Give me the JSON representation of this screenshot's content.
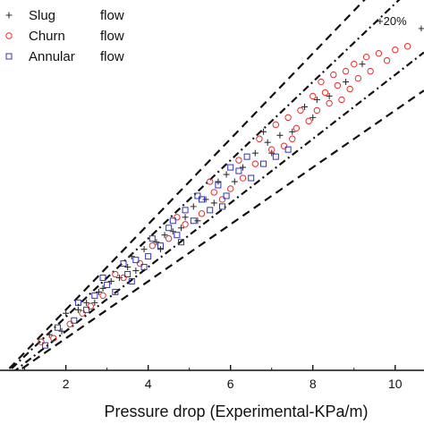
{
  "chart_data": {
    "type": "scatter",
    "title": "",
    "xlabel": "Pressure drop (Experimental-KPa/m)",
    "ylabel": "",
    "xlim": [
      0.4,
      10.7
    ],
    "ylim": [
      0.7,
      11.1
    ],
    "xticks": [
      2,
      4,
      6,
      8,
      10
    ],
    "xtick_labels": [
      "2",
      "4",
      "6",
      "8",
      "10"
    ],
    "grid": false,
    "legend": {
      "position": "top-left",
      "entries": [
        {
          "word1": "Slug",
          "word2": "flow",
          "marker": "plus",
          "color": "#333333"
        },
        {
          "word1": "Churn",
          "word2": "flow",
          "marker": "circle",
          "color": "#e03030"
        },
        {
          "word1": "Annular",
          "word2": "flow",
          "marker": "square",
          "color": "#3030c8"
        }
      ]
    },
    "annotations": [
      {
        "text": "+20%",
        "x": 9.55,
        "y": 10.4
      },
      {
        "text": "+",
        "x": 10.55,
        "y": 10.2
      }
    ],
    "reference_lines": [
      {
        "slope": 1.2,
        "style": "dashed"
      },
      {
        "slope": 1.1,
        "style": "dashdot"
      },
      {
        "slope": 0.9,
        "style": "dashdot"
      },
      {
        "slope": 0.8,
        "style": "dashed"
      }
    ],
    "series": [
      {
        "name": "Slug flow",
        "marker": "plus",
        "color": "#333333",
        "points": [
          [
            1.6,
            1.7
          ],
          [
            1.9,
            1.8
          ],
          [
            2.0,
            2.3
          ],
          [
            2.3,
            2.4
          ],
          [
            2.5,
            2.6
          ],
          [
            2.7,
            2.6
          ],
          [
            2.9,
            3.0
          ],
          [
            3.1,
            3.2
          ],
          [
            3.3,
            3.3
          ],
          [
            3.5,
            3.6
          ],
          [
            3.7,
            3.5
          ],
          [
            3.9,
            4.1
          ],
          [
            4.2,
            4.3
          ],
          [
            4.4,
            4.5
          ],
          [
            4.6,
            4.6
          ],
          [
            4.9,
            5.0
          ],
          [
            5.1,
            5.3
          ],
          [
            5.4,
            5.5
          ],
          [
            5.6,
            5.4
          ],
          [
            5.9,
            6.2
          ],
          [
            6.1,
            6.0
          ],
          [
            6.3,
            6.4
          ],
          [
            6.6,
            6.8
          ],
          [
            6.9,
            7.1
          ],
          [
            7.2,
            7.3
          ],
          [
            7.5,
            7.4
          ],
          [
            7.8,
            8.1
          ],
          [
            8.1,
            8.3
          ],
          [
            8.4,
            8.4
          ],
          [
            8.8,
            8.8
          ],
          [
            9.2,
            9.3
          ],
          [
            5.2,
            4.9
          ],
          [
            4.8,
            4.7
          ],
          [
            3.6,
            3.9
          ],
          [
            2.8,
            2.9
          ],
          [
            6.8,
            7.4
          ],
          [
            5.7,
            6.0
          ],
          [
            7.0,
            6.8
          ],
          [
            4.3,
            4.1
          ],
          [
            8.0,
            7.8
          ]
        ]
      },
      {
        "name": "Churn flow",
        "marker": "circle",
        "color": "#e03030",
        "points": [
          [
            1.4,
            1.5
          ],
          [
            1.7,
            1.6
          ],
          [
            2.1,
            2.0
          ],
          [
            2.4,
            2.3
          ],
          [
            2.9,
            2.8
          ],
          [
            3.4,
            3.3
          ],
          [
            3.8,
            3.7
          ],
          [
            4.1,
            4.2
          ],
          [
            4.5,
            4.4
          ],
          [
            4.9,
            4.8
          ],
          [
            5.3,
            5.1
          ],
          [
            5.6,
            5.7
          ],
          [
            5.8,
            5.5
          ],
          [
            6.0,
            5.8
          ],
          [
            6.3,
            6.1
          ],
          [
            6.6,
            6.5
          ],
          [
            6.7,
            7.2
          ],
          [
            7.0,
            6.9
          ],
          [
            7.1,
            7.6
          ],
          [
            7.3,
            7.0
          ],
          [
            7.4,
            7.8
          ],
          [
            7.6,
            7.5
          ],
          [
            7.7,
            8.0
          ],
          [
            7.9,
            7.7
          ],
          [
            8.0,
            8.4
          ],
          [
            8.1,
            8.0
          ],
          [
            8.2,
            8.8
          ],
          [
            8.3,
            8.5
          ],
          [
            8.4,
            8.2
          ],
          [
            8.5,
            9.0
          ],
          [
            8.6,
            8.7
          ],
          [
            8.7,
            8.3
          ],
          [
            8.8,
            9.1
          ],
          [
            8.9,
            8.6
          ],
          [
            9.0,
            9.3
          ],
          [
            9.1,
            8.9
          ],
          [
            9.3,
            9.5
          ],
          [
            9.4,
            9.1
          ],
          [
            9.6,
            9.6
          ],
          [
            9.8,
            9.4
          ],
          [
            10.0,
            9.7
          ],
          [
            10.3,
            9.8
          ],
          [
            6.2,
            6.6
          ],
          [
            5.5,
            6.0
          ],
          [
            4.7,
            5.0
          ],
          [
            3.2,
            3.4
          ],
          [
            2.6,
            2.5
          ],
          [
            7.5,
            7.2
          ]
        ]
      },
      {
        "name": "Annular flow",
        "marker": "square",
        "color": "#3030c8",
        "points": [
          [
            1.5,
            1.4
          ],
          [
            1.8,
            1.9
          ],
          [
            2.2,
            2.1
          ],
          [
            2.5,
            2.4
          ],
          [
            2.7,
            2.8
          ],
          [
            3.0,
            3.1
          ],
          [
            3.2,
            2.9
          ],
          [
            3.5,
            3.4
          ],
          [
            3.7,
            3.8
          ],
          [
            3.9,
            3.6
          ],
          [
            4.1,
            4.4
          ],
          [
            4.3,
            4.2
          ],
          [
            4.5,
            4.7
          ],
          [
            4.7,
            4.5
          ],
          [
            4.9,
            5.2
          ],
          [
            5.1,
            4.9
          ],
          [
            5.3,
            5.5
          ],
          [
            5.5,
            5.2
          ],
          [
            5.7,
            5.9
          ],
          [
            5.9,
            5.6
          ],
          [
            6.2,
            6.3
          ],
          [
            6.5,
            6.1
          ],
          [
            6.8,
            6.5
          ],
          [
            7.1,
            6.7
          ],
          [
            7.4,
            6.9
          ],
          [
            3.4,
            3.7
          ],
          [
            2.9,
            3.3
          ],
          [
            4.0,
            3.9
          ],
          [
            4.6,
            4.9
          ],
          [
            5.2,
            5.6
          ],
          [
            6.0,
            6.4
          ],
          [
            3.6,
            3.2
          ],
          [
            2.3,
            2.6
          ],
          [
            4.8,
            4.3
          ],
          [
            5.8,
            5.3
          ],
          [
            6.4,
            6.7
          ]
        ]
      }
    ]
  }
}
